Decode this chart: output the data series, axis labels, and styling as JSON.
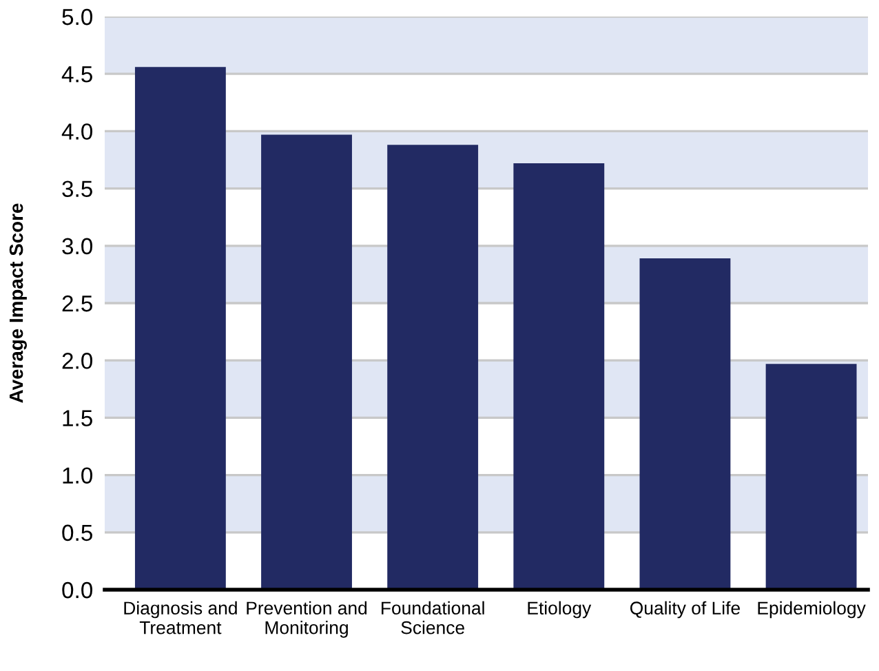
{
  "chart_data": {
    "type": "bar",
    "ylabel": "Average Impact Score",
    "categories": [
      "Diagnosis and\nTreatment",
      "Prevention and\nMonitoring",
      "Foundational\nScience",
      "Etiology",
      "Quality of Life",
      "Epidemiology"
    ],
    "values": [
      4.56,
      3.97,
      3.88,
      3.72,
      2.89,
      1.97
    ],
    "color": "#222a63",
    "ylim": [
      0,
      5
    ],
    "yticks": [
      {
        "value": 0,
        "label": "0.0"
      },
      {
        "value": 0.5,
        "label": "0.5"
      },
      {
        "value": 1,
        "label": "1.0"
      },
      {
        "value": 1.5,
        "label": "1.5"
      },
      {
        "value": 2,
        "label": "2.0"
      },
      {
        "value": 2.5,
        "label": "2.5"
      },
      {
        "value": 3,
        "label": "3.0"
      },
      {
        "value": 3.5,
        "label": "3.5"
      },
      {
        "value": 4,
        "label": "4.0"
      },
      {
        "value": 4.5,
        "label": "4.5"
      },
      {
        "value": 5,
        "label": "5.0"
      }
    ],
    "grid": "y",
    "bands": [
      {
        "axis": "y",
        "from": 0.5,
        "to": 1.0,
        "color": "#e0e6f4"
      },
      {
        "axis": "y",
        "from": 1.5,
        "to": 2.0,
        "color": "#e0e6f4"
      },
      {
        "axis": "y",
        "from": 2.5,
        "to": 3.0,
        "color": "#e0e6f4"
      },
      {
        "axis": "y",
        "from": 3.5,
        "to": 4.0,
        "color": "#e0e6f4"
      },
      {
        "axis": "y",
        "from": 4.5,
        "to": 5.0,
        "color": "#e0e6f4"
      }
    ]
  }
}
